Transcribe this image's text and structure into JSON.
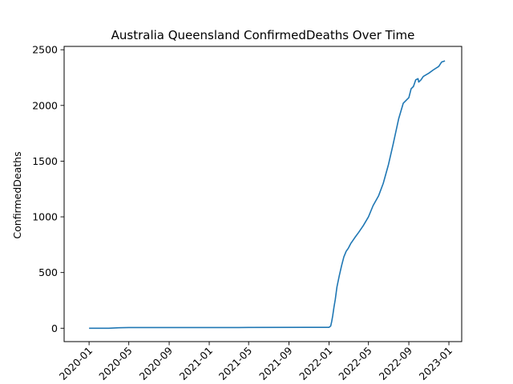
{
  "chart_data": {
    "type": "line",
    "title": "Australia Queensland ConfirmedDeaths Over Time",
    "xlabel": "",
    "ylabel": "ConfirmedDeaths",
    "x_ticks": [
      "2020-01",
      "2020-05",
      "2020-09",
      "2021-01",
      "2021-05",
      "2021-09",
      "2022-01",
      "2022-05",
      "2022-09",
      "2023-01"
    ],
    "y_ticks": [
      0,
      500,
      1000,
      1500,
      2000,
      2500
    ],
    "xlim": [
      "2019-10-17",
      "2023-02-09"
    ],
    "ylim": [
      -120,
      2530
    ],
    "grid": false,
    "legend": "none",
    "colors": {
      "series": "#1f77b4"
    },
    "series": [
      {
        "x": [
          "2020-01-01",
          "2020-03-01",
          "2020-04-01",
          "2020-05-01",
          "2021-01-01",
          "2021-04-01",
          "2021-05-01",
          "2022-01-01",
          "2022-01-06",
          "2022-01-09",
          "2022-01-12",
          "2022-01-16",
          "2022-01-20",
          "2022-01-25",
          "2022-02-01",
          "2022-02-08",
          "2022-02-15",
          "2022-02-22",
          "2022-03-01",
          "2022-03-08",
          "2022-03-15",
          "2022-03-22",
          "2022-04-01",
          "2022-04-15",
          "2022-05-01",
          "2022-05-15",
          "2022-06-01",
          "2022-06-15",
          "2022-07-01",
          "2022-07-15",
          "2022-08-01",
          "2022-08-15",
          "2022-09-01",
          "2022-09-08",
          "2022-09-15",
          "2022-09-22",
          "2022-09-29",
          "2022-10-01",
          "2022-10-08",
          "2022-10-15",
          "2022-11-01",
          "2022-11-15",
          "2022-12-01",
          "2022-12-10",
          "2022-12-20"
        ],
        "values": [
          0,
          0,
          4,
          6,
          6,
          6,
          7,
          8,
          20,
          60,
          110,
          190,
          260,
          370,
          470,
          560,
          640,
          690,
          720,
          760,
          790,
          820,
          860,
          920,
          1000,
          1100,
          1190,
          1300,
          1470,
          1650,
          1880,
          2020,
          2070,
          2150,
          2170,
          2230,
          2240,
          2210,
          2230,
          2260,
          2290,
          2320,
          2350,
          2390,
          2400
        ]
      }
    ]
  }
}
